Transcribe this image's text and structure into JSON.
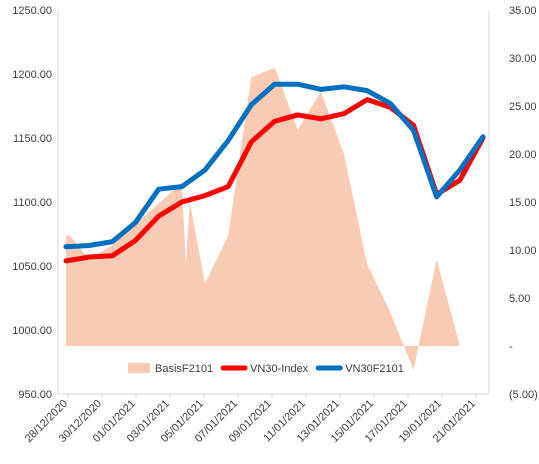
{
  "chart_data": {
    "type": "line",
    "title": "",
    "xlabel": "",
    "ylabel": "",
    "x": [
      "28/12/2020",
      "29/12/2020",
      "30/12/2020",
      "31/12/2020",
      "04/01/2021",
      "05/01/2021",
      "06/01/2021",
      "07/01/2021",
      "08/01/2021",
      "11/01/2021",
      "12/01/2021",
      "13/01/2021",
      "14/01/2021",
      "15/01/2021",
      "18/01/2021",
      "19/01/2021",
      "20/01/2021",
      "21/01/2021",
      "22/01/2021"
    ],
    "x_tick_labels": [
      "28/12/2020",
      "30/12/2020",
      "01/01/2021",
      "03/01/2021",
      "05/01/2021",
      "07/01/2021",
      "09/01/2021",
      "11/01/2021",
      "13/01/2021",
      "15/01/2021",
      "17/01/2021",
      "19/01/2021",
      "21/01/2021"
    ],
    "y_left": {
      "ylim": [
        950,
        1250
      ],
      "ticks": [
        "950.00",
        "1000.00",
        "1050.00",
        "1100.00",
        "1150.00",
        "1200.00",
        "1250.00"
      ]
    },
    "y_right": {
      "ylim": [
        -5,
        35
      ],
      "ticks": [
        "(5.00)",
        "-",
        "5.00",
        "10.00",
        "15.00",
        "20.00",
        "25.00",
        "30.00",
        "35.00"
      ]
    },
    "series": [
      {
        "name": "BasisF2101",
        "kind": "area",
        "axis": "right",
        "color": "#f9cbb5",
        "points": [
          [
            "28/12/2020",
            11.5
          ],
          [
            "28/12/2020",
            11.5
          ],
          [
            "29/12/2020",
            9.0
          ],
          [
            "30/12/2020",
            10.5
          ],
          [
            "05/01/2021",
            17.0
          ],
          [
            "05/01/2021",
            8.5
          ],
          [
            "05/01/2021",
            15.0
          ],
          [
            "06/01/2021",
            6.5
          ],
          [
            "07/01/2021",
            11.5
          ],
          [
            "08/01/2021",
            28.0
          ],
          [
            "11/01/2021",
            29.0
          ],
          [
            "11/01/2021",
            28.0
          ],
          [
            "12/01/2021",
            22.5
          ],
          [
            "13/01/2021",
            26.5
          ],
          [
            "14/01/2021",
            20.0
          ],
          [
            "15/01/2021",
            8.5
          ],
          [
            "18/01/2021",
            3.5
          ],
          [
            "19/01/2021",
            -2.5
          ],
          [
            "20/01/2021",
            9.0
          ],
          [
            "21/01/2021",
            0.0
          ]
        ]
      },
      {
        "name": "VN30-Index",
        "kind": "line",
        "axis": "left",
        "color": "#ff0000",
        "values": [
          1054,
          1057,
          1058,
          1070,
          1089,
          1100,
          1105,
          1112,
          1147,
          1163,
          1168,
          1165,
          1169,
          1180,
          1174,
          1160,
          1106,
          1117,
          1150
        ]
      },
      {
        "name": "VN30F2101",
        "kind": "line",
        "axis": "left",
        "color": "#0070c0",
        "values": [
          1065,
          1066,
          1069,
          1084,
          1110,
          1112,
          1125,
          1148,
          1176,
          1192,
          1192,
          1188,
          1190,
          1187,
          1177,
          1156,
          1104,
          1125,
          1151
        ]
      }
    ],
    "legend": "bottom-inside",
    "grid": false
  }
}
